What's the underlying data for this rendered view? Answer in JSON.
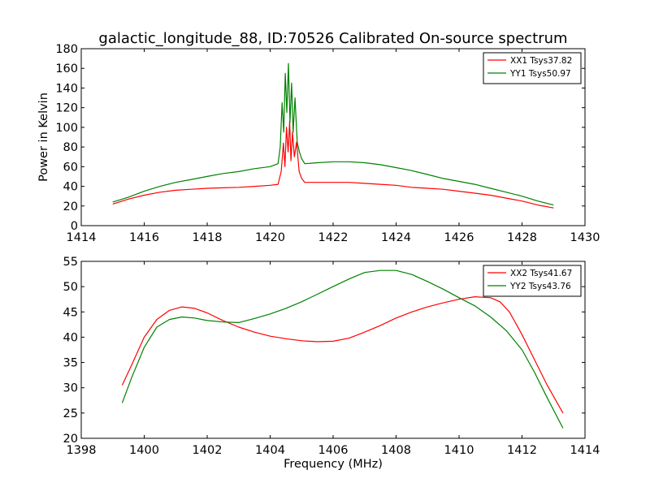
{
  "title": "galactic_longitude_88, ID:70526 Calibrated On-source spectrum",
  "chart_data": [
    {
      "type": "line",
      "title": "galactic_longitude_88, ID:70526 Calibrated On-source spectrum",
      "xlabel": "",
      "ylabel": "Power in Kelvin",
      "xlim": [
        1414,
        1430
      ],
      "ylim": [
        0,
        180
      ],
      "xticks": [
        "1414",
        "1416",
        "1418",
        "1420",
        "1422",
        "1424",
        "1426",
        "1428",
        "1430"
      ],
      "yticks": [
        "0",
        "20",
        "40",
        "60",
        "80",
        "100",
        "120",
        "140",
        "160",
        "180"
      ],
      "grid": false,
      "legend": "top-right",
      "series": [
        {
          "name": "XX1 Tsys37.82",
          "color": "#ff0000",
          "x": [
            1415.0,
            1415.5,
            1416.0,
            1416.5,
            1417.0,
            1417.5,
            1418.0,
            1418.5,
            1419.0,
            1419.5,
            1420.0,
            1420.25,
            1420.35,
            1420.42,
            1420.47,
            1420.52,
            1420.57,
            1420.62,
            1420.66,
            1420.71,
            1420.77,
            1420.84,
            1420.92,
            1421.0,
            1421.1,
            1421.5,
            1422.0,
            1422.5,
            1423.0,
            1423.5,
            1424.0,
            1424.5,
            1425.0,
            1425.5,
            1426.0,
            1426.5,
            1427.0,
            1427.5,
            1428.0,
            1428.5,
            1429.0
          ],
          "y": [
            22,
            27,
            31,
            34,
            36,
            37,
            38,
            38.5,
            39,
            40,
            41,
            42,
            55,
            84,
            60,
            100,
            75,
            106,
            66,
            95,
            70,
            85,
            55,
            48,
            44,
            44,
            44,
            44,
            43,
            42,
            41,
            39,
            38,
            37,
            35,
            33,
            31,
            28,
            25,
            21,
            18
          ]
        },
        {
          "name": "YY1 Tsys50.97",
          "color": "#008000",
          "x": [
            1415.0,
            1415.5,
            1416.0,
            1416.5,
            1417.0,
            1417.5,
            1418.0,
            1418.5,
            1419.0,
            1419.5,
            1420.0,
            1420.25,
            1420.32,
            1420.38,
            1420.43,
            1420.48,
            1420.53,
            1420.58,
            1420.63,
            1420.68,
            1420.73,
            1420.79,
            1420.86,
            1420.93,
            1421.0,
            1421.1,
            1421.5,
            1422.0,
            1422.5,
            1423.0,
            1423.5,
            1424.0,
            1424.5,
            1425.0,
            1425.5,
            1426.0,
            1426.5,
            1427.0,
            1427.5,
            1428.0,
            1428.5,
            1429.0
          ],
          "y": [
            24,
            29,
            35,
            40,
            44,
            47,
            50,
            53,
            55,
            58,
            60,
            63,
            80,
            125,
            95,
            155,
            115,
            165,
            105,
            145,
            95,
            130,
            85,
            75,
            68,
            63,
            64,
            65,
            65,
            64,
            62,
            59,
            56,
            52,
            48,
            45,
            42,
            38,
            34,
            30,
            25,
            21
          ]
        }
      ]
    },
    {
      "type": "line",
      "title": "",
      "xlabel": "Frequency (MHz)",
      "ylabel": "",
      "xlim": [
        1398,
        1414
      ],
      "ylim": [
        20,
        55
      ],
      "xticks": [
        "1398",
        "1400",
        "1402",
        "1404",
        "1406",
        "1408",
        "1410",
        "1412",
        "1414"
      ],
      "yticks": [
        "20",
        "25",
        "30",
        "35",
        "40",
        "45",
        "50",
        "55"
      ],
      "grid": false,
      "legend": "top-right",
      "series": [
        {
          "name": "XX2 Tsys41.67",
          "color": "#ff0000",
          "x": [
            1399.3,
            1399.6,
            1400.0,
            1400.4,
            1400.8,
            1401.2,
            1401.6,
            1402.0,
            1402.5,
            1403.0,
            1403.5,
            1404.0,
            1404.5,
            1405.0,
            1405.5,
            1406.0,
            1406.5,
            1407.0,
            1407.5,
            1408.0,
            1408.5,
            1409.0,
            1409.5,
            1410.0,
            1410.5,
            1411.0,
            1411.3,
            1411.6,
            1412.0,
            1412.4,
            1412.8,
            1413.3
          ],
          "y": [
            30.5,
            34.5,
            40,
            43.5,
            45.3,
            46,
            45.7,
            44.8,
            43.3,
            42,
            41,
            40.2,
            39.7,
            39.3,
            39.1,
            39.2,
            39.8,
            41,
            42.3,
            43.8,
            45,
            46,
            46.8,
            47.5,
            48,
            47.8,
            47,
            45,
            40.5,
            35.5,
            30.5,
            25
          ]
        },
        {
          "name": "YY2 Tsys43.76",
          "color": "#008000",
          "x": [
            1399.3,
            1399.6,
            1400.0,
            1400.4,
            1400.8,
            1401.2,
            1401.6,
            1402.0,
            1402.5,
            1403.0,
            1403.5,
            1404.0,
            1404.5,
            1405.0,
            1405.5,
            1406.0,
            1406.5,
            1407.0,
            1407.5,
            1408.0,
            1408.5,
            1409.0,
            1409.5,
            1410.0,
            1410.5,
            1411.0,
            1411.5,
            1412.0,
            1412.4,
            1412.8,
            1413.3
          ],
          "y": [
            27,
            32,
            38,
            42,
            43.5,
            44,
            43.8,
            43.3,
            43,
            42.9,
            43.7,
            44.6,
            45.7,
            47,
            48.5,
            50,
            51.5,
            52.8,
            53.2,
            53.2,
            52.4,
            51,
            49.5,
            47.8,
            46.2,
            44,
            41.3,
            37.5,
            33,
            28,
            22
          ]
        }
      ]
    }
  ]
}
